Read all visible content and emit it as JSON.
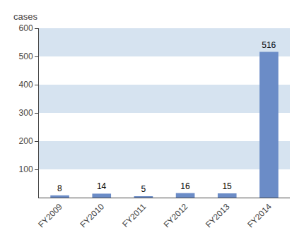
{
  "chart_data": {
    "type": "bar",
    "ylabel": "cases",
    "categories": [
      "FY2009",
      "FY2010",
      "FY2011",
      "FY2012",
      "FY2013",
      "FY2014"
    ],
    "values": [
      8,
      14,
      5,
      16,
      15,
      516
    ],
    "color": "#6b8cc7",
    "ylim": [
      0,
      600
    ],
    "yticks": [
      100,
      200,
      300,
      400,
      500,
      600
    ],
    "grid": true,
    "data_labels": true
  }
}
